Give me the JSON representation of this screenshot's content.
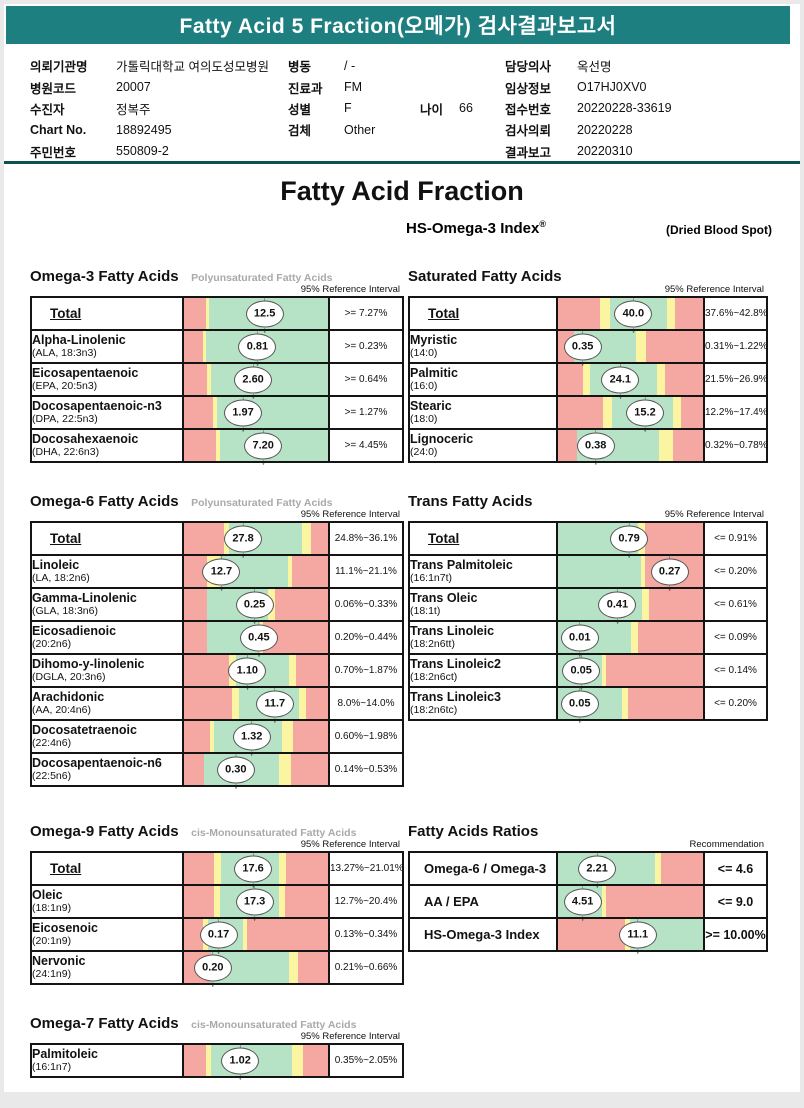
{
  "report": {
    "title": "Fatty Acid 5 Fraction(오메가) 검사결과보고서",
    "main_title": "Fatty Acid Fraction",
    "subtitle": {
      "text": "HS-Omega-3 Index",
      "sup": "®",
      "note": "(Dried Blood Spot)"
    }
  },
  "patient": {
    "columns": [
      {
        "rows": [
          {
            "label": "의뢰기관명",
            "value": "가톨릭대학교 여의도성모병원"
          },
          {
            "label": "병원코드",
            "value": "20007"
          },
          {
            "label": "수진자",
            "value": "정복주"
          },
          {
            "label": "Chart No.",
            "value": "18892495"
          },
          {
            "label": "주민번호",
            "value": "550809-2"
          }
        ]
      },
      {
        "rows": [
          {
            "label": "병동",
            "value": "/ -"
          },
          {
            "label": "진료과",
            "value": "FM"
          },
          {
            "label": "성별",
            "value": "F",
            "extra": {
              "label": "나이",
              "value": "66"
            }
          },
          {
            "label": "검체",
            "value": "Other"
          }
        ]
      },
      {
        "rows": [
          {
            "label": "담당의사",
            "value": "옥선명"
          },
          {
            "label": "임상정보",
            "value": "O17HJ0XV0"
          },
          {
            "label": "접수번호",
            "value": "20220228-33619"
          },
          {
            "label": "검사의뢰",
            "value": "20220228"
          },
          {
            "label": "결과보고",
            "value": "20220310"
          }
        ]
      }
    ]
  },
  "colors": {
    "header_teal": "#1E7F80",
    "separator": "#0C5050",
    "bar_red": "#F5A8A2",
    "bar_yellow": "#FBF4A1",
    "bar_green": "#B6E3C6"
  },
  "chart_data": {
    "type": "table",
    "note": "reference-interval bars; values listed per panel in panels[]"
  },
  "panels": [
    {
      "id": "omega3",
      "title": "Omega-3 Fatty Acids",
      "subtitle": "Polyunsaturated Fatty Acids",
      "ref_label": "95% Reference Interval",
      "side": "left",
      "rows": [
        {
          "name": "Total",
          "formula": "",
          "value": "12.5",
          "ref": ">= 7.27%",
          "pos": 56,
          "is_total": true,
          "segments": [
            [
              "r",
              15
            ],
            [
              "y",
              2.5
            ],
            [
              "g",
              82.5
            ]
          ]
        },
        {
          "name": "Alpha-Linolenic",
          "formula": "(ALA, 18:3n3)",
          "value": "0.81",
          "ref": ">= 0.23%",
          "pos": 51,
          "segments": [
            [
              "r",
              13
            ],
            [
              "y",
              2.5
            ],
            [
              "g",
              84.5
            ]
          ]
        },
        {
          "name": "Eicosapentaenoic",
          "formula": "(EPA, 20:5n3)",
          "value": "2.60",
          "ref": ">= 0.64%",
          "pos": 48,
          "segments": [
            [
              "r",
              16
            ],
            [
              "y",
              2.5
            ],
            [
              "g",
              81.5
            ]
          ]
        },
        {
          "name": "Docosapentaenoic-n3",
          "formula": "(DPA, 22:5n3)",
          "value": "1.97",
          "ref": ">= 1.27%",
          "pos": 41,
          "segments": [
            [
              "r",
              20
            ],
            [
              "y",
              3
            ],
            [
              "g",
              77
            ]
          ]
        },
        {
          "name": "Docosahexaenoic",
          "formula": "(DHA, 22:6n3)",
          "value": "7.20",
          "ref": ">= 4.45%",
          "pos": 55,
          "segments": [
            [
              "r",
              22
            ],
            [
              "y",
              3
            ],
            [
              "g",
              75
            ]
          ]
        }
      ]
    },
    {
      "id": "saturated",
      "title": "Saturated Fatty Acids",
      "subtitle": "",
      "ref_label": "95% Reference Interval",
      "side": "right",
      "rows": [
        {
          "name": "Total",
          "formula": "",
          "value": "40.0",
          "ref": "37.6%~42.8%",
          "pos": 52,
          "is_total": true,
          "segments": [
            [
              "r",
              29
            ],
            [
              "y",
              7
            ],
            [
              "g",
              39
            ],
            [
              "y",
              6
            ],
            [
              "r",
              19
            ]
          ]
        },
        {
          "name": "Myristic",
          "formula": "(14:0)",
          "value": "0.35",
          "ref": "0.31%~1.22%",
          "pos": 17,
          "segments": [
            [
              "r",
              11
            ],
            [
              "g",
              43
            ],
            [
              "y",
              7
            ],
            [
              "r",
              39
            ]
          ]
        },
        {
          "name": "Palmitic",
          "formula": "(16:0)",
          "value": "24.1",
          "ref": "21.5%~26.9%",
          "pos": 43,
          "segments": [
            [
              "r",
              17
            ],
            [
              "y",
              5
            ],
            [
              "g",
              46
            ],
            [
              "y",
              6
            ],
            [
              "r",
              26
            ]
          ]
        },
        {
          "name": "Stearic",
          "formula": "(18:0)",
          "value": "15.2",
          "ref": "12.2%~17.4%",
          "pos": 60,
          "segments": [
            [
              "r",
              31
            ],
            [
              "y",
              6
            ],
            [
              "g",
              42
            ],
            [
              "y",
              6
            ],
            [
              "r",
              15
            ]
          ]
        },
        {
          "name": "Lignoceric",
          "formula": "(24:0)",
          "value": "0.38",
          "ref": "0.32%~0.78%",
          "pos": 26,
          "segments": [
            [
              "r",
              13
            ],
            [
              "g",
              57
            ],
            [
              "y",
              9
            ],
            [
              "r",
              21
            ]
          ]
        }
      ]
    },
    {
      "id": "omega6",
      "title": "Omega-6 Fatty Acids",
      "subtitle": "Polyunsaturated Fatty Acids",
      "ref_label": "95% Reference Interval",
      "side": "left",
      "rows": [
        {
          "name": "Total",
          "formula": "",
          "value": "27.8",
          "ref": "24.8%~36.1%",
          "pos": 41,
          "is_total": true,
          "segments": [
            [
              "r",
              28
            ],
            [
              "y",
              3
            ],
            [
              "g",
              51
            ],
            [
              "y",
              6
            ],
            [
              "r",
              12
            ]
          ]
        },
        {
          "name": "Linoleic",
          "formula": "(LA, 18:2n6)",
          "value": "12.7",
          "ref": "11.1%~21.1%",
          "pos": 26,
          "segments": [
            [
              "r",
              16
            ],
            [
              "y",
              9
            ],
            [
              "g",
              47
            ],
            [
              "y",
              3
            ],
            [
              "r",
              25
            ]
          ]
        },
        {
          "name": "Gamma-Linolenic",
          "formula": "(GLA, 18:3n6)",
          "value": "0.25",
          "ref": "0.06%~0.33%",
          "pos": 49,
          "segments": [
            [
              "r",
              16
            ],
            [
              "g",
              42
            ],
            [
              "y",
              5
            ],
            [
              "r",
              37
            ]
          ]
        },
        {
          "name": "Eicosadienoic",
          "formula": "(20:2n6)",
          "value": "0.45",
          "ref": "0.20%~0.44%",
          "pos": 52,
          "segments": [
            [
              "r",
              16
            ],
            [
              "g",
              36
            ],
            [
              "y",
              3
            ],
            [
              "r",
              45
            ]
          ]
        },
        {
          "name": "Dihomo-y-linolenic",
          "formula": "(DGLA, 20:3n6)",
          "value": "1.10",
          "ref": "0.70%~1.87%",
          "pos": 44,
          "segments": [
            [
              "r",
              31
            ],
            [
              "y",
              5
            ],
            [
              "g",
              37
            ],
            [
              "y",
              5
            ],
            [
              "r",
              22
            ]
          ]
        },
        {
          "name": "Arachidonic",
          "formula": "(AA, 20:4n6)",
          "value": "11.7",
          "ref": "8.0%~14.0%",
          "pos": 63,
          "segments": [
            [
              "r",
              33
            ],
            [
              "y",
              5
            ],
            [
              "g",
              42
            ],
            [
              "y",
              5
            ],
            [
              "r",
              15
            ]
          ]
        },
        {
          "name": "Docosatetraenoic",
          "formula": "(22:4n6)",
          "value": "1.32",
          "ref": "0.60%~1.98%",
          "pos": 47,
          "segments": [
            [
              "r",
              18
            ],
            [
              "y",
              3
            ],
            [
              "g",
              47
            ],
            [
              "y",
              8
            ],
            [
              "r",
              24
            ]
          ]
        },
        {
          "name": "Docosapentaenoic-n6",
          "formula": "(22:5n6)",
          "value": "0.30",
          "ref": "0.14%~0.53%",
          "pos": 36,
          "segments": [
            [
              "r",
              14
            ],
            [
              "g",
              52
            ],
            [
              "y",
              8
            ],
            [
              "r",
              26
            ]
          ]
        }
      ]
    },
    {
      "id": "trans",
      "title": "Trans Fatty Acids",
      "subtitle": "",
      "ref_label": "95% Reference Interval",
      "side": "right",
      "rows": [
        {
          "name": "Total",
          "formula": "",
          "value": "0.79",
          "ref": "<= 0.91%",
          "pos": 49,
          "is_total": true,
          "segments": [
            [
              "g",
              55
            ],
            [
              "y",
              5
            ],
            [
              "r",
              40
            ]
          ]
        },
        {
          "name": "Trans Palmitoleic",
          "formula": "(16:1n7t)",
          "value": "0.27",
          "ref": "<= 0.20%",
          "pos": 77,
          "segments": [
            [
              "g",
              57
            ],
            [
              "y",
              3
            ],
            [
              "r",
              40
            ]
          ]
        },
        {
          "name": "Trans Oleic",
          "formula": "(18:1t)",
          "value": "0.41",
          "ref": "<= 0.61%",
          "pos": 41,
          "segments": [
            [
              "g",
              58
            ],
            [
              "y",
              5
            ],
            [
              "r",
              37
            ]
          ]
        },
        {
          "name": "Trans Linoleic",
          "formula": "(18:2n6tt)",
          "value": "0.01",
          "ref": "<= 0.09%",
          "pos": 15,
          "segments": [
            [
              "g",
              50
            ],
            [
              "y",
              5
            ],
            [
              "r",
              45
            ]
          ]
        },
        {
          "name": "Trans Linoleic2",
          "formula": "(18:2n6ct)",
          "value": "0.05",
          "ref": "<= 0.14%",
          "pos": 16,
          "segments": [
            [
              "g",
              30
            ],
            [
              "y",
              3
            ],
            [
              "r",
              67
            ]
          ]
        },
        {
          "name": "Trans Linoleic3",
          "formula": "(18:2n6tc)",
          "value": "0.05",
          "ref": "<= 0.20%",
          "pos": 15,
          "segments": [
            [
              "g",
              44
            ],
            [
              "y",
              4
            ],
            [
              "r",
              52
            ]
          ]
        }
      ]
    },
    {
      "id": "omega9",
      "title": "Omega-9 Fatty Acids",
      "subtitle": "cis-Monounsaturated Fatty Acids",
      "ref_label": "95% Reference Interval",
      "side": "left",
      "rows": [
        {
          "name": "Total",
          "formula": "",
          "value": "17.6",
          "ref": "13.27%~21.01%",
          "pos": 48,
          "is_total": true,
          "segments": [
            [
              "r",
              21
            ],
            [
              "y",
              5
            ],
            [
              "g",
              40
            ],
            [
              "y",
              5
            ],
            [
              "r",
              29
            ]
          ]
        },
        {
          "name": "Oleic",
          "formula": "(18:1n9)",
          "value": "17.3",
          "ref": "12.7%~20.4%",
          "pos": 49,
          "segments": [
            [
              "r",
              21
            ],
            [
              "y",
              4
            ],
            [
              "g",
              41
            ],
            [
              "y",
              4
            ],
            [
              "r",
              30
            ]
          ]
        },
        {
          "name": "Eicosenoic",
          "formula": "(20:1n9)",
          "value": "0.17",
          "ref": "0.13%~0.34%",
          "pos": 24,
          "segments": [
            [
              "r",
              13
            ],
            [
              "y",
              4
            ],
            [
              "g",
              24
            ],
            [
              "y",
              3
            ],
            [
              "r",
              56
            ]
          ]
        },
        {
          "name": "Nervonic",
          "formula": "(24:1n9)",
          "value": "0.20",
          "ref": "0.21%~0.66%",
          "pos": 20,
          "segments": [
            [
              "r",
              19
            ],
            [
              "g",
              54
            ],
            [
              "y",
              6
            ],
            [
              "r",
              21
            ]
          ]
        }
      ]
    },
    {
      "id": "ratios",
      "title": "Fatty Acids Ratios",
      "subtitle": "",
      "ref_label": "Recommendation",
      "side": "right",
      "is_ratio": true,
      "rows": [
        {
          "name": "Omega-6 / Omega-3",
          "formula": "",
          "value": "2.21",
          "ref": "<= 4.6",
          "pos": 27,
          "segments": [
            [
              "g",
              67
            ],
            [
              "y",
              4
            ],
            [
              "r",
              29
            ]
          ]
        },
        {
          "name": "AA / EPA",
          "formula": "",
          "value": "4.51",
          "ref": "<= 9.0",
          "pos": 17,
          "segments": [
            [
              "g",
              30
            ],
            [
              "y",
              3
            ],
            [
              "r",
              67
            ]
          ]
        },
        {
          "name": "HS-Omega-3 Index",
          "formula": "",
          "value": "11.1",
          "ref": ">= 10.00%",
          "pos": 55,
          "segments": [
            [
              "r",
              46
            ],
            [
              "y",
              4
            ],
            [
              "g",
              50
            ]
          ]
        }
      ]
    },
    {
      "id": "omega7",
      "title": "Omega-7 Fatty Acids",
      "subtitle": "cis-Monounsaturated Fatty Acids",
      "ref_label": "95% Reference Interval",
      "side": "left",
      "rows": [
        {
          "name": "Palmitoleic",
          "formula": "(16:1n7)",
          "value": "1.02",
          "ref": "0.35%~2.05%",
          "pos": 39,
          "segments": [
            [
              "r",
              15
            ],
            [
              "y",
              4
            ],
            [
              "g",
              56
            ],
            [
              "y",
              8
            ],
            [
              "r",
              17
            ]
          ]
        }
      ]
    }
  ]
}
